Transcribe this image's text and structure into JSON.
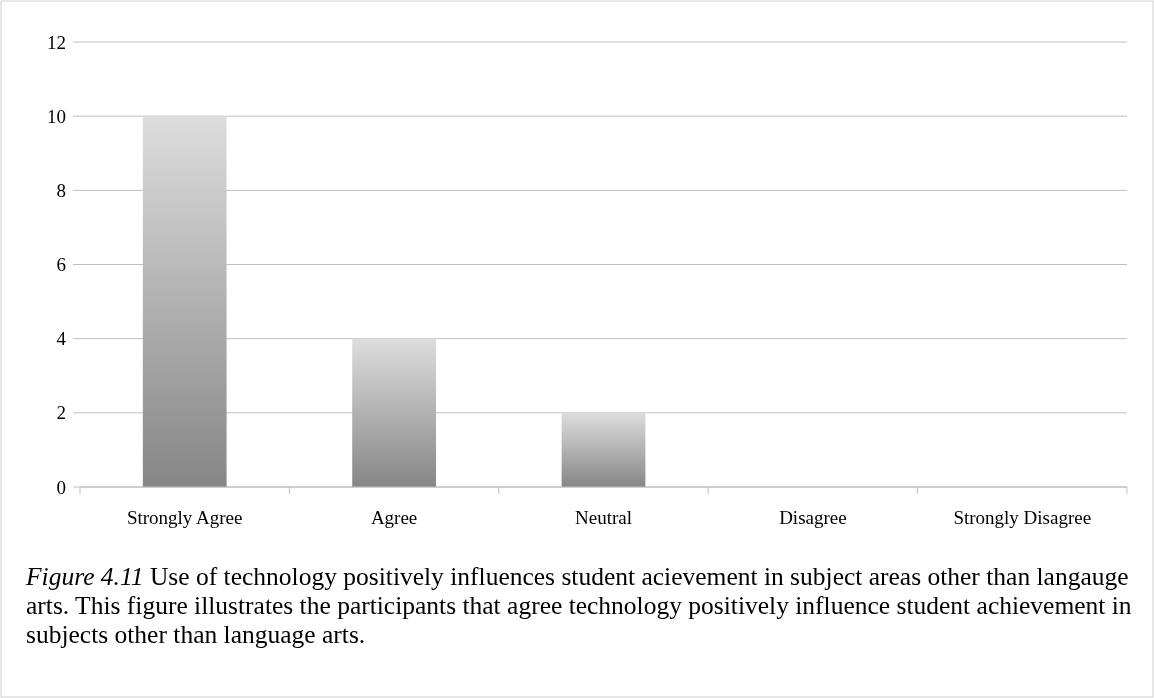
{
  "chart_data": {
    "type": "bar",
    "categories": [
      "Strongly Agree",
      "Agree",
      "Neutral",
      "Disagree",
      "Strongly Disagree"
    ],
    "values": [
      10,
      4,
      2,
      0,
      0
    ],
    "color": "#a6a6a6",
    "ylim": [
      0,
      12
    ],
    "yticks": [
      0,
      2,
      4,
      6,
      8,
      10,
      12
    ],
    "grid": "y",
    "annotations": [
      "Figure 4.11",
      "Use of technology positively influences student acievement in subject areas other than langauge arts. This figure illustrates the participants that agree technology positively influence student achievement in subjects other than language arts."
    ]
  }
}
